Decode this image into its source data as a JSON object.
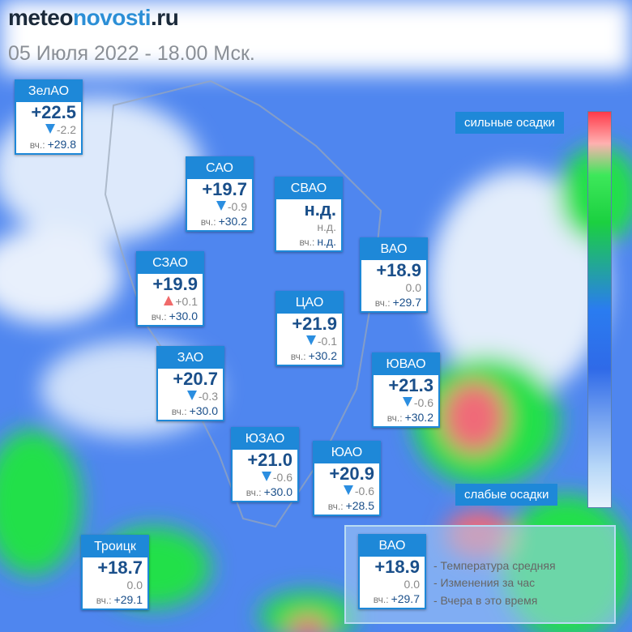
{
  "header": {
    "logo": [
      "meteo",
      "novosti",
      ".ru"
    ],
    "subtitle": "05 Июля 2022 - 18.00 Мск."
  },
  "yesterday_prefix": "вч.:",
  "districts": [
    {
      "name": "ЗелАО",
      "temp": "+22.5",
      "change": "-2.2",
      "yesterday": "+29.8"
    },
    {
      "name": "САО",
      "temp": "+19.7",
      "change": "-0.9",
      "yesterday": "+30.2"
    },
    {
      "name": "СВАО",
      "temp": "н.д.",
      "change": "н.д.",
      "yesterday": "н.д."
    },
    {
      "name": "ВАО",
      "temp": "+18.9",
      "change": "0.0",
      "yesterday": "+29.7"
    },
    {
      "name": "СЗАО",
      "temp": "+19.9",
      "change": "+0.1",
      "yesterday": "+30.0"
    },
    {
      "name": "ЦАО",
      "temp": "+21.9",
      "change": "-0.1",
      "yesterday": "+30.2"
    },
    {
      "name": "ЗАО",
      "temp": "+20.7",
      "change": "-0.3",
      "yesterday": "+30.0"
    },
    {
      "name": "ЮВАО",
      "temp": "+21.3",
      "change": "-0.6",
      "yesterday": "+30.2"
    },
    {
      "name": "ЮЗАО",
      "temp": "+21.0",
      "change": "-0.6",
      "yesterday": "+30.0"
    },
    {
      "name": "ЮАО",
      "temp": "+20.9",
      "change": "-0.6",
      "yesterday": "+28.5"
    },
    {
      "name": "Троицк",
      "temp": "+18.7",
      "change": "0.0",
      "yesterday": "+29.1"
    }
  ],
  "scale": {
    "heavy": "сильные осадки",
    "light": "слабые осадки"
  },
  "legend": {
    "sample": {
      "name": "ВАО",
      "temp": "+18.9",
      "change": "0.0",
      "yesterday": "+29.7"
    },
    "items": [
      "- Температура средняя",
      "- Изменения за час",
      "- Вчера в это время"
    ]
  }
}
